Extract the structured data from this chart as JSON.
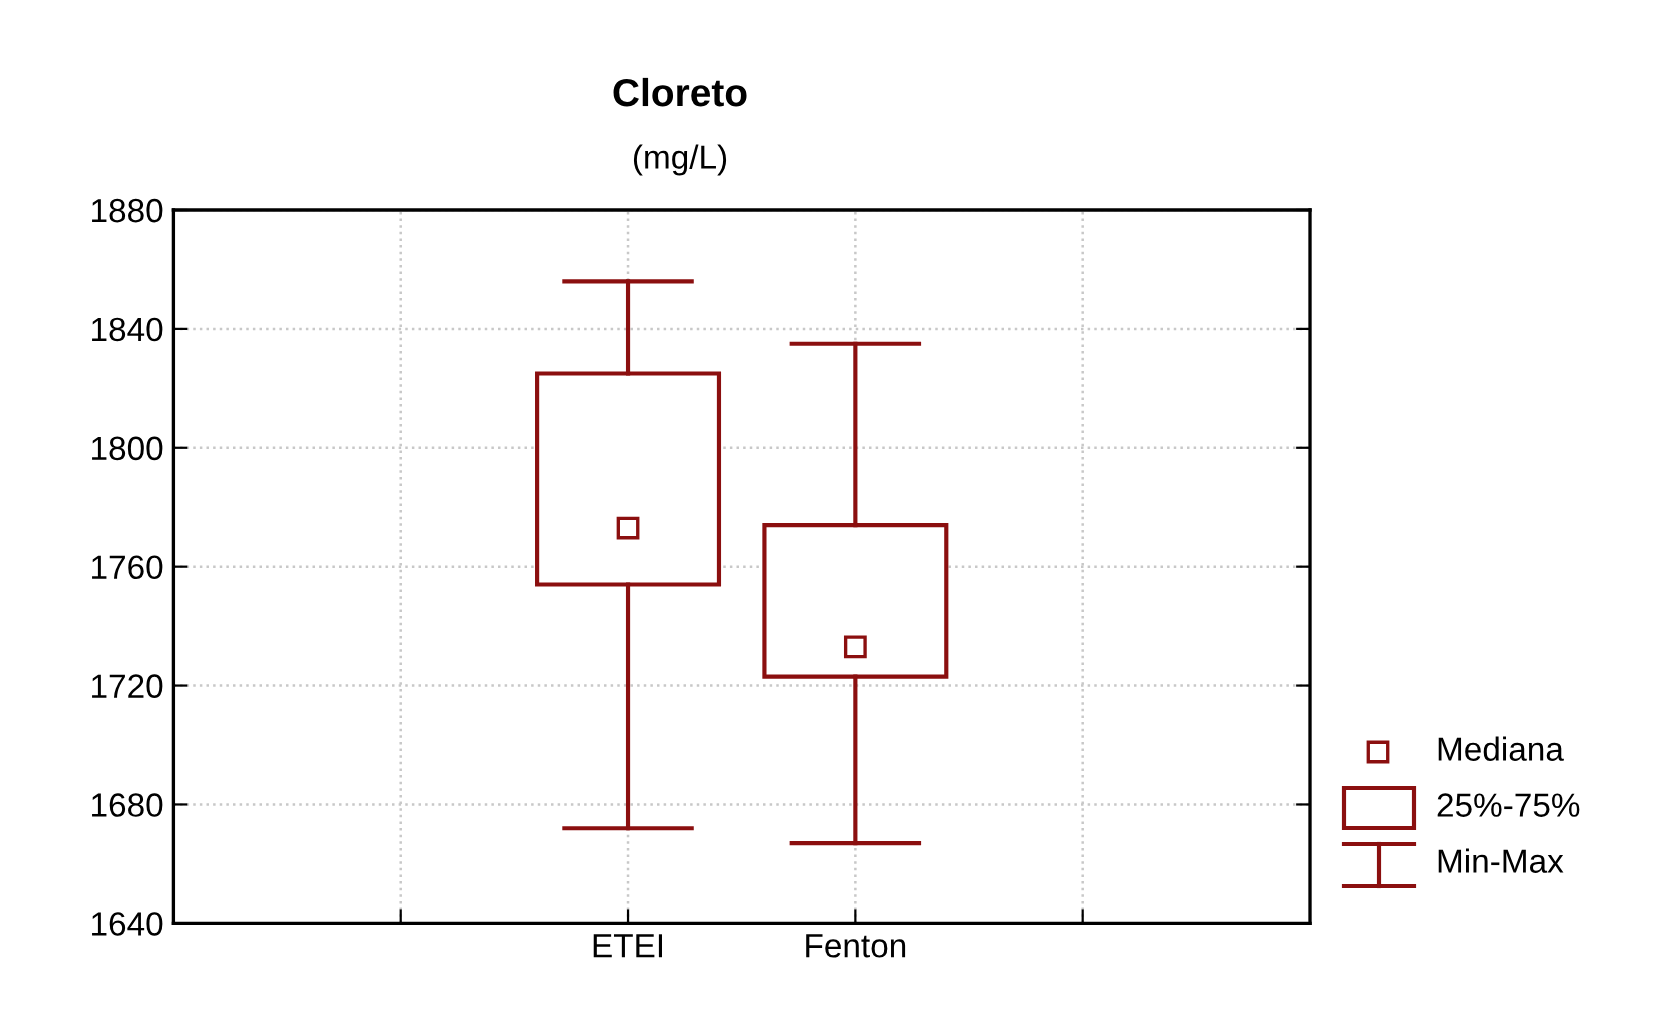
{
  "chart_data": {
    "type": "box",
    "title": "Cloreto",
    "subtitle": "(mg/L)",
    "categories": [
      "ETEI",
      "Fenton"
    ],
    "series": [
      {
        "color": "#8b0f0f",
        "boxes": [
          {
            "low": 1672,
            "q1": 1754,
            "median": 1773,
            "q3": 1825,
            "high": 1856
          },
          {
            "low": 1667,
            "q1": 1723,
            "median": 1733,
            "q3": 1774,
            "high": 1835
          }
        ]
      }
    ],
    "ylim": [
      1640,
      1880
    ],
    "yticks": [
      1640,
      1680,
      1720,
      1760,
      1800,
      1840,
      1880
    ],
    "grid": true,
    "marker": "square",
    "annotations": [
      "Mediana",
      "25%-75%",
      "Min-Max"
    ]
  }
}
